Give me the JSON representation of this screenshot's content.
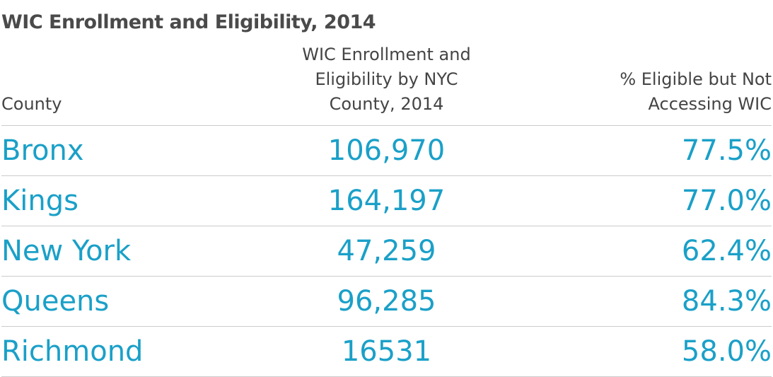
{
  "title": "WIC Enrollment and Eligibility, 2014",
  "table": {
    "header": [
      "County",
      "WIC Enrollment and Eligibility by NYC County, 2014",
      "% Eligible but Not Accessing WIC"
    ],
    "rows": [
      [
        "Bronx",
        "106,970",
        "77.5%"
      ],
      [
        "Kings",
        "164,197",
        "77.0%"
      ],
      [
        "New York",
        "47,259",
        "62.4%"
      ],
      [
        "Queens",
        "96,285",
        "84.3%"
      ],
      [
        "Richmond",
        "16531",
        "58.0%"
      ]
    ]
  }
}
